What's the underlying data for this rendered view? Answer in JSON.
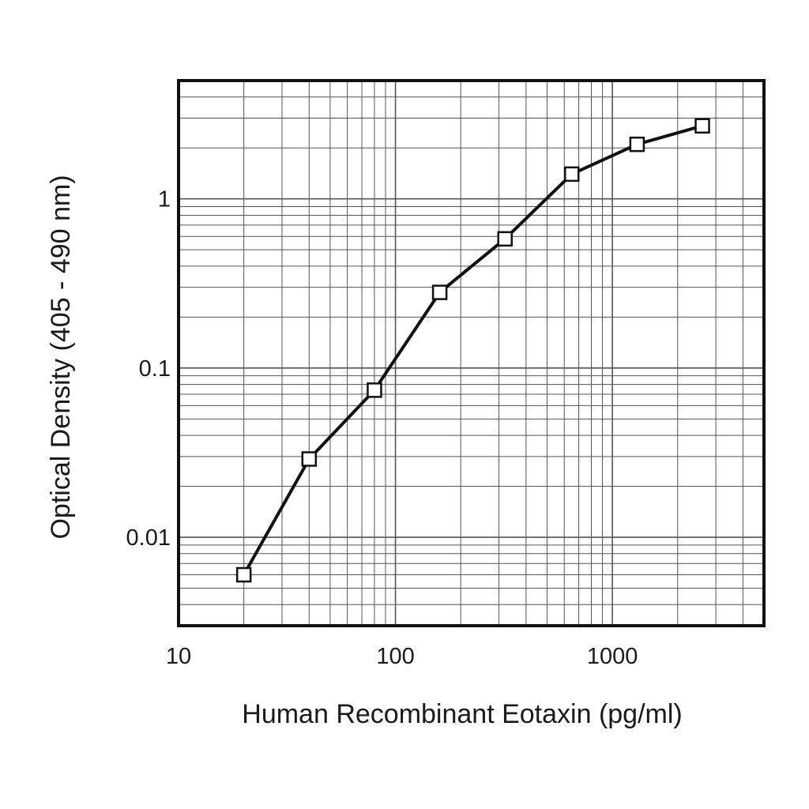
{
  "chart_data": {
    "type": "line",
    "title": "",
    "xlabel": "Human Recombinant Eotaxin (pg/ml)",
    "ylabel": "Optical Density (405 - 490 nm)",
    "x_scale": "log",
    "y_scale": "log",
    "xlim": [
      10,
      5000
    ],
    "ylim": [
      0.003,
      5
    ],
    "grid": true,
    "legend": "none",
    "x_ticks": [
      {
        "value": 10,
        "label": "10"
      },
      {
        "value": 100,
        "label": "100"
      },
      {
        "value": 1000,
        "label": "1000"
      }
    ],
    "y_ticks": [
      {
        "value": 0.01,
        "label": "0.01"
      },
      {
        "value": 0.1,
        "label": "0.1"
      },
      {
        "value": 1,
        "label": "1"
      }
    ],
    "series": [
      {
        "x": [
          20,
          40,
          80,
          160,
          320,
          650,
          1300,
          2600
        ],
        "y": [
          0.006,
          0.029,
          0.074,
          0.28,
          0.58,
          1.4,
          2.1,
          2.7
        ]
      }
    ],
    "colors": {
      "line": "#111111",
      "grid": "#555555",
      "frame": "#111111",
      "marker_fill": "#ffffff"
    }
  }
}
